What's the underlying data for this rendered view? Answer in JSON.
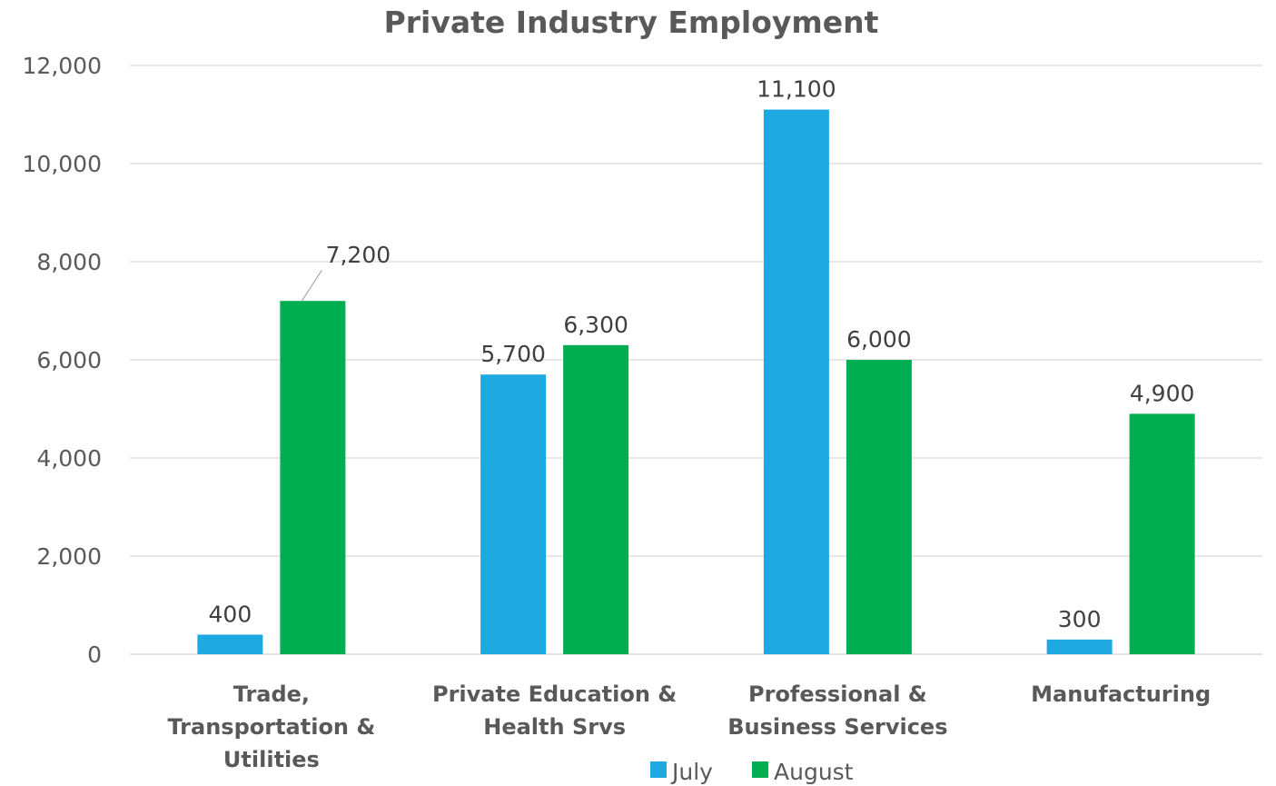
{
  "chart_data": {
    "type": "bar",
    "title": "Private Industry Employment",
    "categories": [
      [
        "Trade,",
        "Transportation &",
        "Utilities"
      ],
      [
        "Private Education &",
        "Health Srvs"
      ],
      [
        "Professional &",
        "Business Services"
      ],
      [
        "Manufacturing"
      ]
    ],
    "series": [
      {
        "name": "July",
        "color": "#1EAAE1",
        "values": [
          400,
          5700,
          11100,
          300
        ],
        "labels": [
          "400",
          "5,700",
          "11,100",
          "300"
        ]
      },
      {
        "name": "August",
        "color": "#00AD50",
        "values": [
          7200,
          6300,
          6000,
          4900
        ],
        "labels": [
          "7,200",
          "6,300",
          "6,000",
          "4,900"
        ]
      }
    ],
    "ylim": [
      0,
      12000
    ],
    "y_ticks": [
      0,
      2000,
      4000,
      6000,
      8000,
      10000,
      12000
    ],
    "y_tick_labels": [
      "0",
      "2,000",
      "4,000",
      "6,000",
      "8,000",
      "10,000",
      "12,000"
    ],
    "grid": true,
    "legend_position": "bottom",
    "xlabel": "",
    "ylabel": ""
  }
}
